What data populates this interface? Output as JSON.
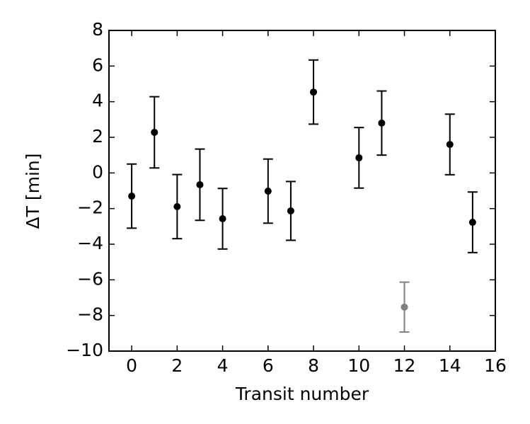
{
  "chart_data": {
    "type": "errorbar",
    "x_label": "Transit number",
    "y_label": "ΔT [min]",
    "x": [
      0,
      1,
      2,
      3,
      4,
      6,
      7,
      8,
      10,
      11,
      12,
      14,
      15
    ],
    "values": [
      -1.3,
      2.28,
      -1.89,
      -0.66,
      -2.57,
      -1.02,
      -2.13,
      4.54,
      0.85,
      2.8,
      -7.53,
      1.6,
      -2.77
    ],
    "errors": [
      1.8,
      2.0,
      1.8,
      2.0,
      1.7,
      1.8,
      1.65,
      1.8,
      1.7,
      1.8,
      1.4,
      1.7,
      1.7
    ],
    "colors": [
      "#000000",
      "#000000",
      "#000000",
      "#000000",
      "#000000",
      "#000000",
      "#000000",
      "#000000",
      "#000000",
      "#000000",
      "#808080",
      "#000000",
      "#000000"
    ],
    "xlim": [
      -1,
      16
    ],
    "xticks": [
      0,
      2,
      4,
      6,
      8,
      10,
      12,
      14,
      16
    ],
    "ylim": [
      -10,
      8
    ],
    "yticks": [
      {
        "value": -10,
        "label": "−10"
      },
      {
        "value": -8,
        "label": "−8"
      },
      {
        "value": -6,
        "label": "−6"
      },
      {
        "value": -4,
        "label": "−4"
      },
      {
        "value": -2,
        "label": "−2"
      },
      0,
      2,
      4,
      6,
      8
    ]
  }
}
